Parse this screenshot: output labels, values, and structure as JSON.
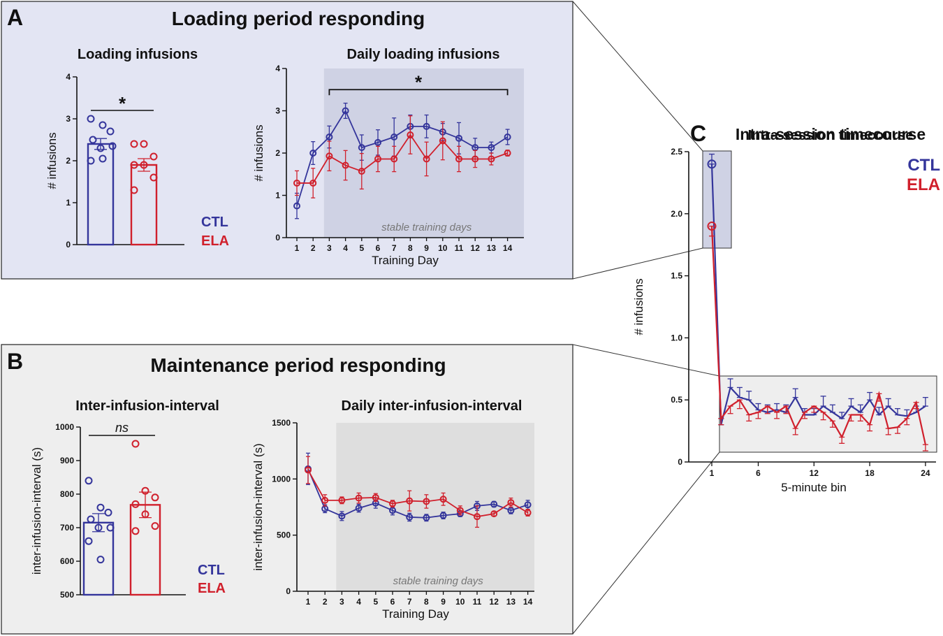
{
  "colors": {
    "ctl": "#34359b",
    "ela": "#d0202c",
    "panel_a_bg": "#e3e5f3",
    "panel_b_bg": "#eeeeee",
    "shade_a": "#cfd2e4",
    "shade_b": "#dedede",
    "shade_c": "#cfd2e4"
  },
  "panels": {
    "A": {
      "letter": "A",
      "title": "Loading period responding"
    },
    "B": {
      "letter": "B",
      "title": "Maintenance period responding"
    },
    "C": {
      "letter": "C"
    }
  },
  "legend": {
    "ctl": "CTL",
    "ela": "ELA"
  },
  "chart_data": [
    {
      "id": "a1",
      "type": "bar",
      "title": "Loading infusions",
      "ylabel": "# infusions",
      "ylim": [
        0,
        4
      ],
      "yticks": [
        "0",
        "1",
        "2",
        "3",
        "4"
      ],
      "yticks_values": [
        0,
        1,
        2,
        3,
        4
      ],
      "categories": [
        "CTL",
        "ELA"
      ],
      "values": [
        2.4,
        1.9
      ],
      "errors": [
        0.13,
        0.15
      ],
      "points": [
        [
          3.0,
          2.85,
          2.7,
          2.5,
          2.3,
          2.35,
          2.0,
          2.05
        ],
        [
          2.4,
          2.4,
          2.1,
          1.9,
          1.9,
          1.6,
          1.3
        ]
      ],
      "annotation": "*"
    },
    {
      "id": "a2",
      "type": "line",
      "title": "Daily loading infusions",
      "xlabel": "Training Day",
      "ylabel": "# infusions",
      "ylim": [
        0,
        4
      ],
      "yticks": [
        "0",
        "1",
        "2",
        "3",
        "4"
      ],
      "yticks_values": [
        0,
        1,
        2,
        3,
        4
      ],
      "x": [
        "1",
        "2",
        "3",
        "4",
        "5",
        "6",
        "7",
        "8",
        "9",
        "10",
        "11",
        "12",
        "13",
        "14"
      ],
      "series": [
        {
          "name": "CTL",
          "values": [
            0.75,
            2.0,
            2.38,
            3.0,
            2.13,
            2.25,
            2.38,
            2.63,
            2.63,
            2.5,
            2.35,
            2.13,
            2.13,
            2.38
          ],
          "errors": [
            0.3,
            0.27,
            0.26,
            0.18,
            0.3,
            0.3,
            0.45,
            0.27,
            0.27,
            0.2,
            0.37,
            0.22,
            0.13,
            0.18
          ]
        },
        {
          "name": "ELA",
          "values": [
            1.29,
            1.29,
            1.93,
            1.71,
            1.57,
            1.86,
            1.86,
            2.43,
            1.86,
            2.29,
            1.86,
            1.86,
            1.86,
            2.0
          ],
          "errors": [
            0.29,
            0.35,
            0.35,
            0.35,
            0.42,
            0.3,
            0.3,
            0.45,
            0.4,
            0.45,
            0.3,
            0.2,
            0.14,
            0.07
          ]
        }
      ],
      "shaded_label": "stable training days",
      "annotation": "*"
    },
    {
      "id": "b1",
      "type": "bar",
      "title": "Inter-infusion-interval",
      "ylabel": "inter-infusion-interval (s)",
      "ylim": [
        500,
        1000
      ],
      "yticks": [
        "500",
        "600",
        "700",
        "800",
        "900",
        "1000"
      ],
      "yticks_values": [
        500,
        600,
        700,
        800,
        900,
        1000
      ],
      "categories": [
        "CTL",
        "ELA"
      ],
      "values": [
        715,
        768
      ],
      "errors": [
        27,
        38
      ],
      "points": [
        [
          840,
          760,
          745,
          725,
          700,
          700,
          660,
          605
        ],
        [
          950,
          810,
          790,
          770,
          740,
          705,
          690
        ]
      ],
      "annotation": "ns"
    },
    {
      "id": "b2",
      "type": "line",
      "title": "Daily inter-infusion-interval",
      "xlabel": "Training Day",
      "ylabel": "inter-infusion-interval (s)",
      "ylim": [
        0,
        1500
      ],
      "yticks": [
        "0",
        "500",
        "1000",
        "1500"
      ],
      "yticks_values": [
        0,
        500,
        1000,
        1500
      ],
      "x": [
        "1",
        "2",
        "3",
        "4",
        "5",
        "6",
        "7",
        "8",
        "9",
        "10",
        "11",
        "12",
        "13",
        "14"
      ],
      "series": [
        {
          "name": "CTL",
          "values": [
            1090,
            735,
            670,
            740,
            785,
            720,
            660,
            655,
            675,
            690,
            760,
            775,
            720,
            770
          ],
          "errors": [
            140,
            35,
            40,
            35,
            45,
            40,
            35,
            30,
            30,
            25,
            40,
            25,
            30,
            40
          ]
        },
        {
          "name": "ELA",
          "values": [
            1080,
            810,
            810,
            830,
            835,
            780,
            805,
            800,
            820,
            720,
            665,
            690,
            790,
            700
          ],
          "errors": [
            120,
            50,
            30,
            45,
            35,
            30,
            90,
            60,
            55,
            40,
            95,
            20,
            40,
            30
          ]
        }
      ],
      "shaded_label": "stable training days"
    },
    {
      "id": "c",
      "type": "line",
      "title": "Intra-session timecourse",
      "xlabel": "5-minute bin",
      "ylabel": "# infusions",
      "ylim": [
        0,
        2.5
      ],
      "yticks": [
        "0",
        "0.5",
        "1.0",
        "1.5",
        "2.0",
        "2.5"
      ],
      "yticks_values": [
        0,
        0.5,
        1.0,
        1.5,
        2.0,
        2.5
      ],
      "xticks": [
        "1",
        "6",
        "12",
        "18",
        "24"
      ],
      "xticks_values": [
        1,
        6,
        12,
        18,
        24
      ],
      "x": [
        1,
        2,
        3,
        4,
        5,
        6,
        7,
        8,
        9,
        10,
        11,
        12,
        13,
        14,
        15,
        16,
        17,
        18,
        19,
        20,
        21,
        22,
        23,
        24
      ],
      "series": [
        {
          "name": "CTL",
          "values": [
            2.4,
            0.3,
            0.6,
            0.52,
            0.5,
            0.42,
            0.4,
            0.42,
            0.4,
            0.52,
            0.38,
            0.38,
            0.45,
            0.4,
            0.35,
            0.45,
            0.4,
            0.5,
            0.38,
            0.45,
            0.38,
            0.37,
            0.4,
            0.45
          ],
          "errors": [
            0.08,
            0.05,
            0.07,
            0.08,
            0.07,
            0.05,
            0.06,
            0.05,
            0.06,
            0.07,
            0.05,
            0.05,
            0.08,
            0.06,
            0.05,
            0.06,
            0.06,
            0.06,
            0.06,
            0.06,
            0.05,
            0.05,
            0.05,
            0.07
          ]
        },
        {
          "name": "ELA",
          "values": [
            1.9,
            0.35,
            0.45,
            0.5,
            0.38,
            0.4,
            0.45,
            0.4,
            0.45,
            0.27,
            0.4,
            0.45,
            0.4,
            0.33,
            0.2,
            0.38,
            0.38,
            0.3,
            0.55,
            0.27,
            0.28,
            0.35,
            0.48,
            0.14
          ]
        }
      ],
      "ela_errors": [
        0.08,
        0.05,
        0.06,
        0.07,
        0.05,
        0.05,
        0.06,
        0.05,
        0.06,
        0.05,
        0.05,
        0.05,
        0.06,
        0.05,
        0.05,
        0.05,
        0.05,
        0.05,
        0.06,
        0.05,
        0.05,
        0.05,
        0.05,
        0.05
      ]
    }
  ]
}
